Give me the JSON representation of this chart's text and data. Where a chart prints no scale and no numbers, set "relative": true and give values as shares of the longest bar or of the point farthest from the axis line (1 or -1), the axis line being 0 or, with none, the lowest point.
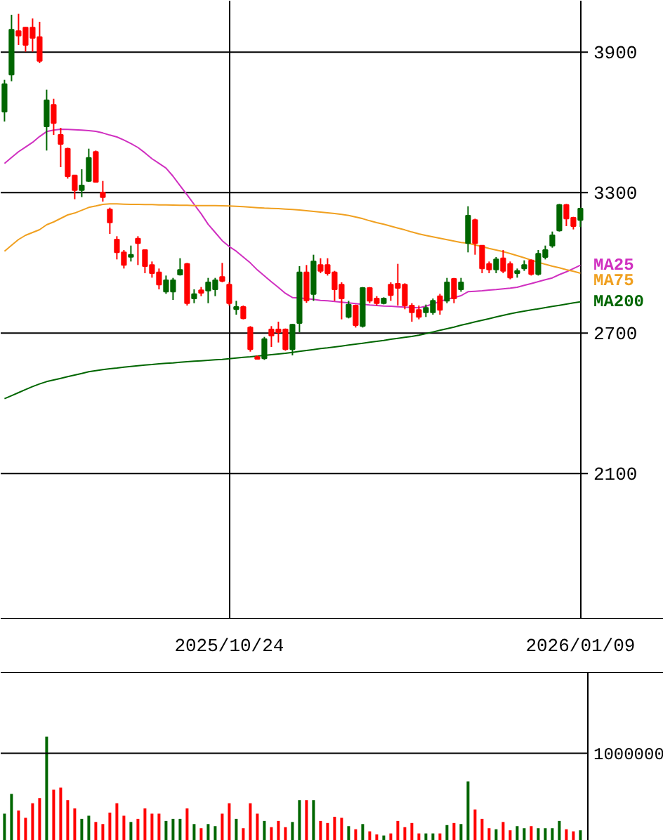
{
  "chart_data": [
    {
      "type": "candlestick",
      "categories": [
        null,
        null,
        null,
        null,
        null,
        null,
        null,
        null,
        null,
        null,
        null,
        null,
        null,
        null,
        null,
        null,
        null,
        null,
        null,
        null,
        null,
        null,
        null,
        null,
        null,
        null,
        null,
        null,
        null,
        null,
        null,
        null,
        "2025/10/24",
        null,
        null,
        null,
        null,
        null,
        null,
        null,
        null,
        null,
        null,
        null,
        null,
        null,
        null,
        null,
        null,
        null,
        null,
        null,
        null,
        null,
        null,
        null,
        null,
        null,
        null,
        null,
        null,
        null,
        null,
        null,
        null,
        null,
        null,
        null,
        null,
        null,
        null,
        null,
        null,
        null,
        null,
        null,
        null,
        null,
        null,
        null,
        null,
        null,
        "2026/01/09"
      ],
      "ohlc": [
        [
          3646,
          3782,
          3604,
          3764
        ],
        [
          3804,
          4060,
          3776,
          3996
        ],
        [
          3990,
          4064,
          3931,
          3971
        ],
        [
          4005,
          4007,
          3902,
          3931
        ],
        [
          4005,
          4044,
          3902,
          3961
        ],
        [
          3965,
          4030,
          3853,
          3863
        ],
        [
          3583,
          3740,
          3480,
          3695
        ],
        [
          3675,
          3701,
          3547,
          3597
        ],
        [
          3547,
          3577,
          3409,
          3508
        ],
        [
          3488,
          3492,
          3360,
          3370
        ],
        [
          3374,
          3374,
          3272,
          3311
        ],
        [
          3311,
          3400,
          3281,
          3331
        ],
        [
          3350,
          3488,
          3346,
          3449
        ],
        [
          3474,
          3480,
          3346,
          3346
        ],
        [
          3301,
          3350,
          3262,
          3281
        ],
        [
          3228,
          3236,
          3124,
          3173
        ],
        [
          3100,
          3114,
          3015,
          3045
        ],
        [
          3045,
          3055,
          2976,
          2991
        ],
        [
          3026,
          3074,
          3006,
          3035
        ],
        [
          3104,
          3114,
          2991,
          3084
        ],
        [
          3055,
          3055,
          2956,
          2986
        ],
        [
          2991,
          3006,
          2937,
          2956
        ],
        [
          2960,
          2976,
          2887,
          2907
        ],
        [
          2877,
          2946,
          2868,
          2926
        ],
        [
          2877,
          2936,
          2842,
          2926
        ],
        [
          2950,
          3020,
          2946,
          2970
        ],
        [
          2996,
          3000,
          2818,
          2828
        ],
        [
          2848,
          2887,
          2828,
          2867
        ],
        [
          2883,
          2897,
          2858,
          2872
        ],
        [
          2882,
          2936,
          2828,
          2917
        ],
        [
          2887,
          2936,
          2858,
          2926
        ],
        [
          2940,
          3000,
          2917,
          2923
        ],
        [
          2907,
          2917,
          2818,
          2828
        ],
        [
          2802,
          2838,
          2779,
          2812
        ],
        [
          2812,
          2818,
          2759,
          2763
        ],
        [
          2724,
          2730,
          2621,
          2631
        ],
        [
          2598,
          2605,
          2590,
          2590
        ],
        [
          2592,
          2684,
          2586,
          2675
        ],
        [
          2716,
          2730,
          2641,
          2690
        ],
        [
          2716,
          2749,
          2660,
          2704
        ],
        [
          2716,
          2720,
          2625,
          2631
        ],
        [
          2631,
          2740,
          2605,
          2736
        ],
        [
          2743,
          2986,
          2704,
          2960
        ],
        [
          2960,
          2991,
          2830,
          2840
        ],
        [
          2867,
          3035,
          2838,
          3006
        ],
        [
          2991,
          3020,
          2956,
          2966
        ],
        [
          2991,
          3020,
          2946,
          2956
        ],
        [
          2960,
          2966,
          2838,
          2887
        ],
        [
          2907,
          2917,
          2759,
          2848
        ],
        [
          2769,
          2838,
          2763,
          2822
        ],
        [
          2818,
          2822,
          2724,
          2734
        ],
        [
          2730,
          2897,
          2724,
          2893
        ],
        [
          2893,
          2897,
          2828,
          2838
        ],
        [
          2848,
          2858,
          2818,
          2828
        ],
        [
          2828,
          2853,
          2823,
          2848
        ],
        [
          2907,
          2917,
          2838,
          2862
        ],
        [
          2911,
          2996,
          2818,
          2893
        ],
        [
          2907,
          2913,
          2802,
          2818
        ],
        [
          2818,
          2828,
          2749,
          2789
        ],
        [
          2799,
          2818,
          2759,
          2769
        ],
        [
          2789,
          2822,
          2769,
          2808
        ],
        [
          2789,
          2848,
          2779,
          2838
        ],
        [
          2858,
          2868,
          2779,
          2799
        ],
        [
          2838,
          2936,
          2828,
          2917
        ],
        [
          2932,
          2936,
          2828,
          2848
        ],
        [
          2887,
          2936,
          2877,
          2917
        ],
        [
          3084,
          3242,
          3045,
          3202
        ],
        [
          3183,
          3189,
          3035,
          3084
        ],
        [
          3074,
          3074,
          2956,
          2976
        ],
        [
          2996,
          3006,
          2956,
          2972
        ],
        [
          2972,
          3025,
          2956,
          3015
        ],
        [
          3020,
          3055,
          2956,
          2966
        ],
        [
          2996,
          3006,
          2930,
          2937
        ],
        [
          2956,
          2976,
          2937,
          2966
        ],
        [
          2976,
          3011,
          2966,
          2991
        ],
        [
          3011,
          3015,
          2946,
          2952
        ],
        [
          2952,
          3055,
          2946,
          3039
        ],
        [
          3025,
          3074,
          3015,
          3055
        ],
        [
          3074,
          3134,
          3065,
          3118
        ],
        [
          3138,
          3252,
          3134,
          3248
        ],
        [
          3248,
          3252,
          3157,
          3189
        ],
        [
          3193,
          3197,
          3143,
          3157
        ],
        [
          3183,
          3236,
          3153,
          3232
        ]
      ],
      "colors": [
        "#006600",
        "#006600",
        "#ff0000",
        "#ff0000",
        "#ff0000",
        "#ff0000",
        "#006600",
        "#ff0000",
        "#ff0000",
        "#ff0000",
        "#ff0000",
        "#006600",
        "#006600",
        "#ff0000",
        "#ff0000",
        "#ff0000",
        "#ff0000",
        "#ff0000",
        "#006600",
        "#ff0000",
        "#ff0000",
        "#ff0000",
        "#ff0000",
        "#006600",
        "#006600",
        "#006600",
        "#ff0000",
        "#006600",
        "#ff0000",
        "#006600",
        "#006600",
        "#ff0000",
        "#ff0000",
        "#006600",
        "#ff0000",
        "#ff0000",
        "#ff0000",
        "#006600",
        "#ff0000",
        "#ff0000",
        "#ff0000",
        "#006600",
        "#006600",
        "#ff0000",
        "#006600",
        "#ff0000",
        "#ff0000",
        "#ff0000",
        "#ff0000",
        "#006600",
        "#ff0000",
        "#006600",
        "#ff0000",
        "#ff0000",
        "#006600",
        "#ff0000",
        "#ff0000",
        "#ff0000",
        "#ff0000",
        "#ff0000",
        "#006600",
        "#006600",
        "#ff0000",
        "#006600",
        "#ff0000",
        "#006600",
        "#006600",
        "#ff0000",
        "#ff0000",
        "#ff0000",
        "#006600",
        "#ff0000",
        "#ff0000",
        "#006600",
        "#006600",
        "#ff0000",
        "#006600",
        "#006600",
        "#006600",
        "#006600",
        "#ff0000",
        "#ff0000",
        "#006600"
      ],
      "series": [
        {
          "name": "MA25",
          "type": "line",
          "color": "#d030c0",
          "values": [
            3425,
            3450,
            3475,
            3495,
            3515,
            3540,
            3561,
            3567,
            3571,
            3570,
            3569,
            3567,
            3565,
            3562,
            3555,
            3546,
            3538,
            3525,
            3510,
            3493,
            3470,
            3445,
            3425,
            3405,
            3370,
            3330,
            3291,
            3250,
            3210,
            3165,
            3130,
            3095,
            3070,
            3050,
            3025,
            3000,
            2970,
            2945,
            2919,
            2895,
            2870,
            2852,
            2850,
            2847,
            2844,
            2840,
            2838,
            2835,
            2832,
            2829,
            2826,
            2823,
            2820,
            2818,
            2816,
            2815,
            2813,
            2811,
            2810,
            2808,
            2815,
            2825,
            2835,
            2845,
            2852,
            2860,
            2877,
            2879,
            2881,
            2884,
            2886,
            2889,
            2892,
            2896,
            2904,
            2912,
            2920,
            2928,
            2936,
            2950,
            2962,
            2976,
            2990
          ]
        },
        {
          "name": "MA75",
          "type": "line",
          "color": "#f0a020",
          "values": [
            3050,
            3075,
            3100,
            3118,
            3130,
            3142,
            3163,
            3175,
            3190,
            3205,
            3213,
            3225,
            3237,
            3243,
            3250,
            3252,
            3252,
            3251,
            3250,
            3250,
            3249,
            3249,
            3248,
            3248,
            3247,
            3246,
            3246,
            3245,
            3245,
            3245,
            3245,
            3244,
            3243,
            3242,
            3240,
            3238,
            3236,
            3234,
            3233,
            3232,
            3230,
            3228,
            3226,
            3223,
            3220,
            3217,
            3214,
            3211,
            3207,
            3203,
            3196,
            3189,
            3180,
            3172,
            3165,
            3157,
            3149,
            3141,
            3132,
            3124,
            3117,
            3111,
            3105,
            3099,
            3093,
            3087,
            3084,
            3077,
            3070,
            3062,
            3055,
            3048,
            3040,
            3031,
            3022,
            3012,
            3003,
            2994,
            2986,
            2979,
            2971,
            2964,
            2956
          ]
        },
        {
          "name": "MA200",
          "type": "line",
          "color": "#006600",
          "values": [
            2420,
            2433,
            2446,
            2459,
            2472,
            2483,
            2493,
            2500,
            2507,
            2514,
            2521,
            2528,
            2535,
            2540,
            2544,
            2548,
            2551,
            2555,
            2558,
            2561,
            2564,
            2566,
            2569,
            2571,
            2573,
            2576,
            2578,
            2580,
            2582,
            2584,
            2586,
            2588,
            2591,
            2594,
            2597,
            2599,
            2602,
            2605,
            2608,
            2611,
            2614,
            2618,
            2622,
            2626,
            2630,
            2634,
            2637,
            2641,
            2645,
            2649,
            2653,
            2657,
            2661,
            2665,
            2669,
            2674,
            2678,
            2682,
            2686,
            2691,
            2698,
            2705,
            2712,
            2719,
            2726,
            2734,
            2741,
            2748,
            2755,
            2762,
            2769,
            2776,
            2783,
            2789,
            2794,
            2799,
            2804,
            2809,
            2814,
            2819,
            2824,
            2829,
            2834
          ]
        }
      ],
      "ylim": [
        1480,
        4120
      ],
      "yticks": [
        2100,
        2700,
        3300,
        3900
      ],
      "grid": true
    },
    {
      "type": "bar",
      "relative": true,
      "categories": [
        null,
        null,
        null,
        null,
        null,
        null,
        null,
        null,
        null,
        null,
        null,
        null,
        null,
        null,
        null,
        null,
        null,
        null,
        null,
        null,
        null,
        null,
        null,
        null,
        null,
        null,
        null,
        null,
        null,
        null,
        null,
        null,
        null,
        null,
        null,
        null,
        null,
        null,
        null,
        null,
        null,
        null,
        null,
        null,
        null,
        null,
        null,
        null,
        null,
        null,
        null,
        null,
        null,
        null,
        null,
        null,
        null,
        null,
        null,
        null,
        null,
        null,
        null,
        null,
        null,
        null,
        null,
        null,
        null,
        null,
        null,
        null,
        null,
        null,
        null,
        null,
        null,
        null,
        null,
        null,
        null,
        null,
        null
      ],
      "values": [
        0.26,
        0.45,
        0.29,
        0.22,
        0.36,
        0.41,
        1,
        0.49,
        0.51,
        0.39,
        0.31,
        0.21,
        0.24,
        0.18,
        0.16,
        0.27,
        0.36,
        0.24,
        0.18,
        0.21,
        0.31,
        0.26,
        0.26,
        0.19,
        0.21,
        0.21,
        0.31,
        0.16,
        0.12,
        0.16,
        0.14,
        0.26,
        0.36,
        0.21,
        0.12,
        0.36,
        0.26,
        0.19,
        0.13,
        0.19,
        0.13,
        0.18,
        0.39,
        0.39,
        0.39,
        0.19,
        0.17,
        0.23,
        0.22,
        0.14,
        0.11,
        0.16,
        0.09,
        0.06,
        0.05,
        0.07,
        0.19,
        0.13,
        0.17,
        0.07,
        0.07,
        0.07,
        0.07,
        0.15,
        0.17,
        0.16,
        0.57,
        0.3,
        0.21,
        0.12,
        0.11,
        0.18,
        0.1,
        0.14,
        0.12,
        0.14,
        0.12,
        0.12,
        0.12,
        0.19,
        0.11,
        0.09,
        0.1
      ],
      "colors": [
        "#006600",
        "#006600",
        "#ff0000",
        "#ff0000",
        "#ff0000",
        "#ff0000",
        "#006600",
        "#ff0000",
        "#ff0000",
        "#ff0000",
        "#ff0000",
        "#006600",
        "#006600",
        "#ff0000",
        "#ff0000",
        "#ff0000",
        "#ff0000",
        "#ff0000",
        "#006600",
        "#ff0000",
        "#ff0000",
        "#ff0000",
        "#ff0000",
        "#006600",
        "#006600",
        "#006600",
        "#ff0000",
        "#006600",
        "#ff0000",
        "#006600",
        "#006600",
        "#ff0000",
        "#ff0000",
        "#006600",
        "#ff0000",
        "#ff0000",
        "#ff0000",
        "#006600",
        "#ff0000",
        "#ff0000",
        "#ff0000",
        "#006600",
        "#006600",
        "#ff0000",
        "#006600",
        "#ff0000",
        "#ff0000",
        "#ff0000",
        "#ff0000",
        "#006600",
        "#ff0000",
        "#006600",
        "#ff0000",
        "#ff0000",
        "#006600",
        "#ff0000",
        "#ff0000",
        "#ff0000",
        "#ff0000",
        "#ff0000",
        "#006600",
        "#006600",
        "#ff0000",
        "#006600",
        "#ff0000",
        "#006600",
        "#006600",
        "#ff0000",
        "#ff0000",
        "#ff0000",
        "#006600",
        "#ff0000",
        "#ff0000",
        "#006600",
        "#006600",
        "#ff0000",
        "#006600",
        "#006600",
        "#006600",
        "#006600",
        "#ff0000",
        "#ff0000",
        "#006600"
      ],
      "ref_lines": [
        {
          "axis": "y",
          "value": 0.84
        }
      ],
      "annotations": [
        "1000000"
      ]
    }
  ]
}
